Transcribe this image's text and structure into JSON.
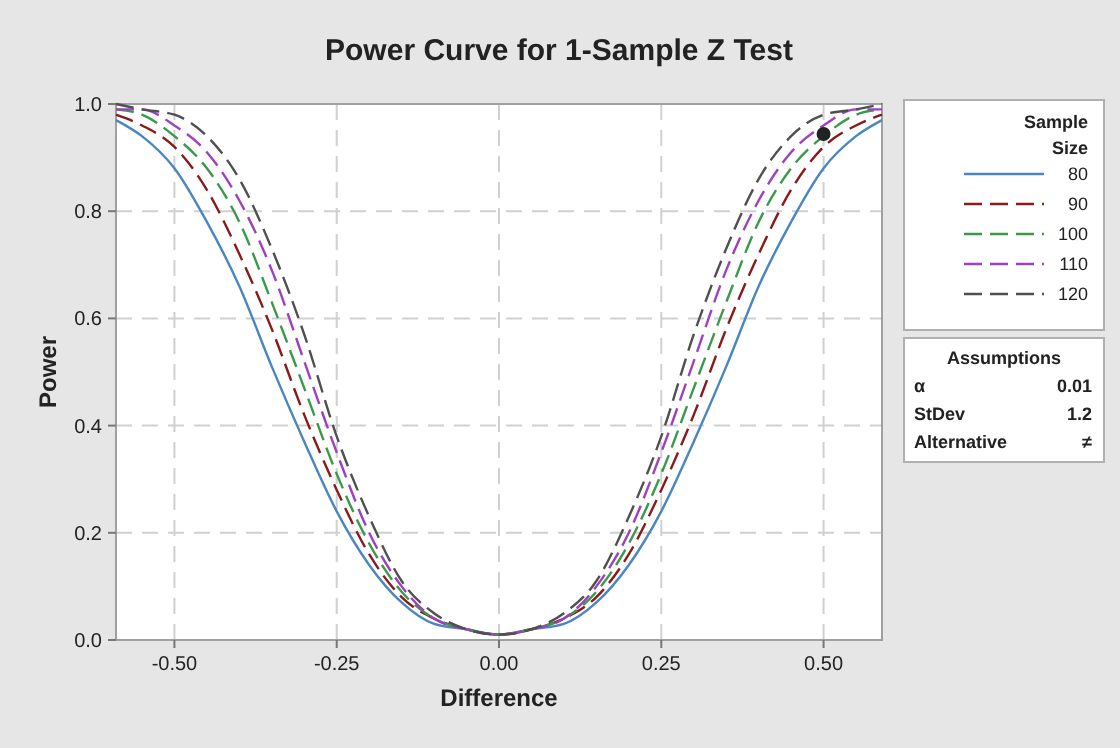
{
  "chart_data": {
    "type": "line",
    "title": "Power Curve for 1-Sample Z Test",
    "xlabel": "Difference",
    "ylabel": "Power",
    "legend_title": "Sample Size",
    "legend": "right",
    "grid": true,
    "x": [
      -0.59,
      -0.55,
      -0.5,
      -0.45,
      -0.4,
      -0.35,
      -0.3,
      -0.25,
      -0.2,
      -0.15,
      -0.1,
      -0.05,
      0,
      0.05,
      0.1,
      0.15,
      0.2,
      0.25,
      0.3,
      0.35,
      0.4,
      0.45,
      0.5,
      0.55,
      0.59
    ],
    "xlim": [
      -0.59,
      0.59
    ],
    "ylim": [
      0,
      1
    ],
    "xticks": [
      {
        "value": -0.5,
        "label": "-0.50"
      },
      {
        "value": -0.25,
        "label": "-0.25"
      },
      {
        "value": 0,
        "label": "0.00"
      },
      {
        "value": 0.25,
        "label": "0.25"
      },
      {
        "value": 0.5,
        "label": "0.50"
      }
    ],
    "yticks": [
      {
        "value": 0,
        "label": "0.0"
      },
      {
        "value": 0.2,
        "label": "0.2"
      },
      {
        "value": 0.4,
        "label": "0.4"
      },
      {
        "value": 0.6,
        "label": "0.6"
      },
      {
        "value": 0.8,
        "label": "0.8"
      },
      {
        "value": 1,
        "label": "1.0"
      }
    ],
    "series": [
      {
        "name": "80",
        "color": "#4a86c0",
        "line_style": "solid",
        "values": [
          0.97,
          0.94,
          0.88,
          0.78,
          0.66,
          0.51,
          0.37,
          0.24,
          0.14,
          0.07,
          0.03,
          0.02,
          0.01,
          0.02,
          0.03,
          0.07,
          0.14,
          0.24,
          0.37,
          0.51,
          0.66,
          0.78,
          0.88,
          0.94,
          0.97
        ]
      },
      {
        "name": "90",
        "color": "#8b1a1a",
        "line_style": "dashed",
        "values": [
          0.98,
          0.96,
          0.92,
          0.84,
          0.72,
          0.58,
          0.42,
          0.28,
          0.16,
          0.08,
          0.04,
          0.02,
          0.01,
          0.02,
          0.04,
          0.08,
          0.16,
          0.28,
          0.42,
          0.58,
          0.72,
          0.84,
          0.92,
          0.96,
          0.98
        ]
      },
      {
        "name": "100",
        "color": "#3a9a4a",
        "line_style": "dashed",
        "values": [
          0.99,
          0.98,
          0.94,
          0.88,
          0.78,
          0.63,
          0.47,
          0.31,
          0.18,
          0.09,
          0.04,
          0.02,
          0.01,
          0.02,
          0.04,
          0.09,
          0.18,
          0.31,
          0.47,
          0.63,
          0.78,
          0.88,
          0.94,
          0.98,
          0.99
        ]
      },
      {
        "name": "110",
        "color": "#a040c0",
        "line_style": "dashed",
        "values": [
          0.99,
          0.99,
          0.96,
          0.91,
          0.82,
          0.69,
          0.52,
          0.35,
          0.2,
          0.1,
          0.04,
          0.02,
          0.01,
          0.02,
          0.04,
          0.1,
          0.2,
          0.35,
          0.52,
          0.69,
          0.82,
          0.91,
          0.96,
          0.99,
          0.99
        ]
      },
      {
        "name": "120",
        "color": "#505050",
        "line_style": "dashed",
        "values": [
          1,
          0.99,
          0.98,
          0.94,
          0.86,
          0.73,
          0.57,
          0.38,
          0.23,
          0.11,
          0.05,
          0.02,
          0.01,
          0.02,
          0.05,
          0.11,
          0.23,
          0.38,
          0.57,
          0.73,
          0.86,
          0.94,
          0.98,
          0.99,
          1
        ]
      },
      {
        "type": "scatter",
        "color": "#222222",
        "marker": "circle",
        "x": [
          0.5
        ],
        "values": [
          0.944
        ]
      }
    ],
    "annotations": [
      "Assumptions",
      "α",
      "0.01",
      "StDev",
      "1.2",
      "Alternative",
      "≠"
    ]
  }
}
